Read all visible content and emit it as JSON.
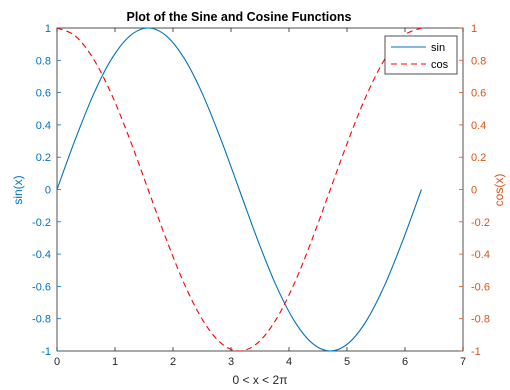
{
  "chart_data": {
    "type": "line",
    "title": "Plot of the Sine and Cosine Functions",
    "xlabel": "0 < x < 2π",
    "ylabel_left": "sin(x)",
    "ylabel_right": "cos(x)",
    "xlim": [
      0,
      7
    ],
    "ylim_left": [
      -1,
      1
    ],
    "ylim_right": [
      -1,
      1
    ],
    "x_ticks": [
      0,
      1,
      2,
      3,
      4,
      5,
      6,
      7
    ],
    "y_ticks": [
      1,
      0.8,
      0.6,
      0.4,
      0.2,
      0,
      -0.2,
      -0.4,
      -0.6,
      -0.8,
      -1
    ],
    "y_tick_labels": [
      "1",
      "0.8",
      "0.6",
      "0.4",
      "0.2",
      "0",
      "-0.2",
      "-0.4",
      "-0.6",
      "-0.8",
      "-1"
    ],
    "grid": false,
    "legend_placement": "top-right",
    "colors": {
      "left_axis": "#0072BD",
      "right_axis": "#D95319",
      "sin_line": "#0072BD",
      "cos_line": "#FF0000",
      "axes_box": "#262626"
    },
    "series": [
      {
        "name": "sin",
        "axis": "left",
        "style": "solid",
        "x": [
          0,
          0.314,
          0.628,
          0.942,
          1.257,
          1.571,
          1.885,
          2.199,
          2.513,
          2.827,
          3.142,
          3.456,
          3.77,
          4.084,
          4.398,
          4.712,
          5.027,
          5.341,
          5.655,
          5.969,
          6.283
        ],
        "y": [
          0,
          0.309,
          0.588,
          0.809,
          0.951,
          1,
          0.951,
          0.809,
          0.588,
          0.309,
          0,
          -0.309,
          -0.588,
          -0.809,
          -0.951,
          -1,
          -0.951,
          -0.809,
          -0.588,
          -0.309,
          0
        ]
      },
      {
        "name": "cos",
        "axis": "right",
        "style": "dashed",
        "x": [
          0,
          0.314,
          0.628,
          0.942,
          1.257,
          1.571,
          1.885,
          2.199,
          2.513,
          2.827,
          3.142,
          3.456,
          3.77,
          4.084,
          4.398,
          4.712,
          5.027,
          5.341,
          5.655,
          5.969,
          6.283
        ],
        "y": [
          1,
          0.951,
          0.809,
          0.588,
          0.309,
          0,
          -0.309,
          -0.588,
          -0.809,
          -0.951,
          -1,
          -0.951,
          -0.809,
          -0.588,
          -0.309,
          0,
          0.309,
          0.588,
          0.809,
          0.951,
          1
        ]
      }
    ]
  }
}
